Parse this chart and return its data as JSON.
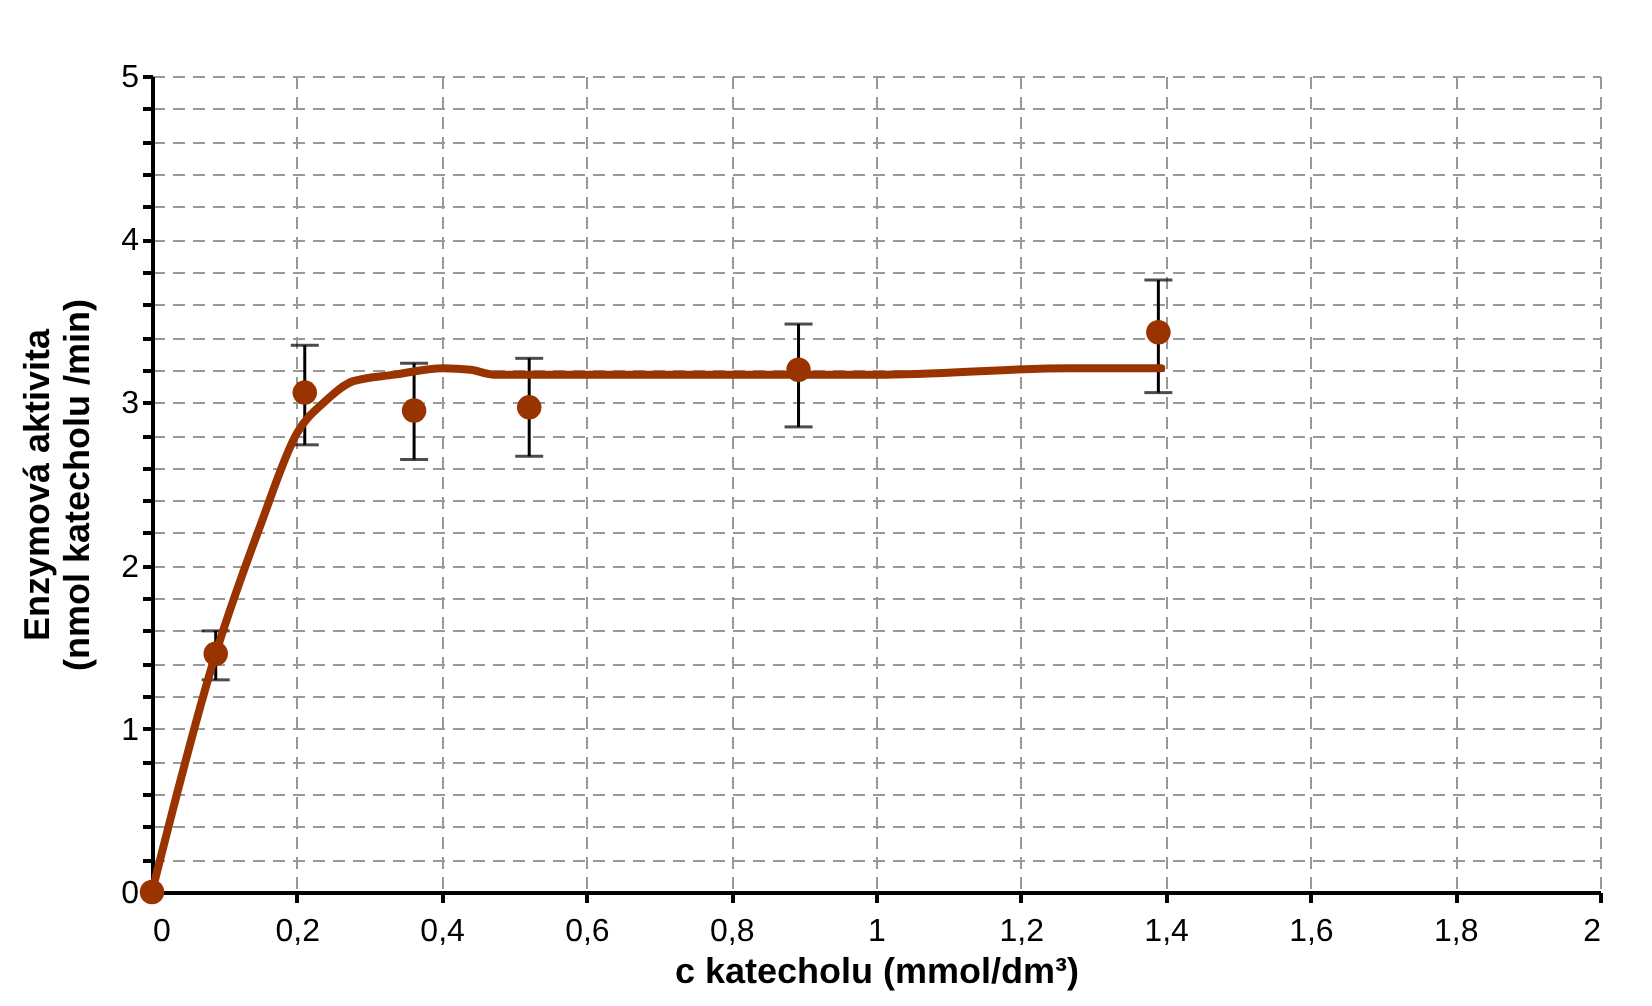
{
  "chart_data": {
    "type": "scatter",
    "xlabel": "c katecholu (mmol/dm³)",
    "ylabel": "Enzymová aktivita\n(nmol katecholu /min)",
    "xlim": [
      0,
      2
    ],
    "ylim": [
      0,
      5
    ],
    "xticks": [
      0,
      {
        "value": 0.2,
        "label": "0,2"
      },
      {
        "value": 0.4,
        "label": "0,4"
      },
      {
        "value": 0.6,
        "label": "0,6"
      },
      {
        "value": 0.8,
        "label": "0,8"
      },
      1,
      {
        "value": 1.2,
        "label": "1,2"
      },
      {
        "value": 1.4,
        "label": "1,4"
      },
      {
        "value": 1.6,
        "label": "1,6"
      },
      {
        "value": 1.8,
        "label": "1,8"
      },
      2
    ],
    "yticks": [
      0,
      {
        "value": 0.2,
        "label": null
      },
      {
        "value": 0.4,
        "label": null
      },
      {
        "value": 0.6,
        "label": null
      },
      {
        "value": 0.8,
        "label": null
      },
      1,
      {
        "value": 1.2,
        "label": null
      },
      {
        "value": 1.4,
        "label": null
      },
      {
        "value": 1.6,
        "label": null
      },
      {
        "value": 1.8,
        "label": null
      },
      2,
      {
        "value": 2.2,
        "label": null
      },
      {
        "value": 2.4,
        "label": null
      },
      {
        "value": 2.6,
        "label": null
      },
      {
        "value": 2.8,
        "label": null
      },
      3,
      {
        "value": 3.2,
        "label": null
      },
      {
        "value": 3.4,
        "label": null
      },
      {
        "value": 3.6,
        "label": null
      },
      {
        "value": 3.8,
        "label": null
      },
      4,
      {
        "value": 4.2,
        "label": null
      },
      {
        "value": 4.4,
        "label": null
      },
      {
        "value": 4.6,
        "label": null
      },
      {
        "value": 4.8,
        "label": null
      },
      5
    ],
    "grid": true,
    "line_style": "solid",
    "series": [
      {
        "color": "#993300",
        "marker": "circle",
        "x": [
          0,
          0.088,
          0.211,
          0.362,
          0.521,
          0.893,
          1.39
        ],
        "values": [
          0,
          1.46,
          3.06,
          2.95,
          2.97,
          3.2,
          3.43
        ],
        "errors": [
          null,
          [
            1.3,
            1.6
          ],
          [
            2.74,
            3.35
          ],
          [
            2.65,
            3.24
          ],
          [
            2.67,
            3.27
          ],
          [
            2.85,
            3.48
          ],
          [
            3.06,
            3.75
          ]
        ]
      },
      {
        "type": "line",
        "color": "#993300",
        "marker": "none",
        "x": [
          0,
          0.088,
          0.15,
          0.2,
          0.24,
          0.278,
          0.335,
          0.402,
          0.44,
          0.473,
          0.7,
          1.0,
          1.269,
          1.394
        ],
        "values": [
          0,
          1.46,
          2.25,
          2.81,
          3.01,
          3.13,
          3.17,
          3.21,
          3.2,
          3.17,
          3.17,
          3.17,
          3.21,
          3.21
        ]
      }
    ]
  }
}
